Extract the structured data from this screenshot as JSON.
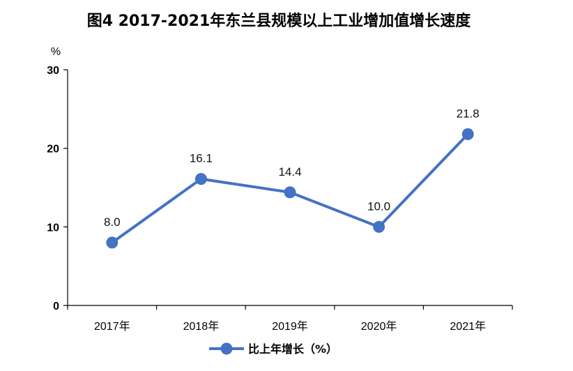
{
  "chart_data": {
    "type": "line",
    "title": "图4   2017-2021年东兰县规模以上工业增加值增长速度",
    "ylabel": "%",
    "xlabel": "",
    "categories": [
      "2017年",
      "2018年",
      "2019年",
      "2020年",
      "2021年"
    ],
    "series": [
      {
        "name": "比上年增长（%）",
        "values": [
          8.0,
          16.1,
          14.4,
          10.0,
          21.8
        ]
      }
    ],
    "data_labels": [
      "8.0",
      "16.1",
      "14.4",
      "10.0",
      "21.8"
    ],
    "ylim": [
      0,
      30
    ],
    "yticks": [
      0,
      10,
      20,
      30
    ],
    "grid": false,
    "legend_position": "bottom",
    "color": "#4472C4"
  }
}
